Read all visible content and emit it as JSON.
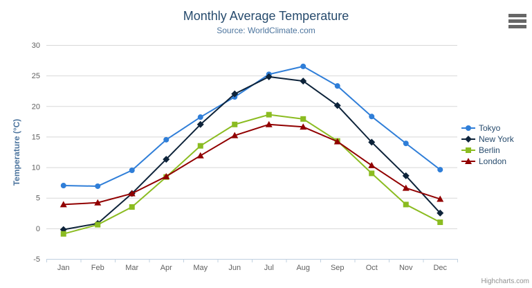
{
  "chart": {
    "title": "Monthly Average Temperature",
    "subtitle": "Source: WorldClimate.com",
    "credits_label": "Highcharts.com",
    "context_menu_icon": "hamburger-icon",
    "colors": {
      "title_text": "#274b6d",
      "subtitle_text": "#4d759e",
      "axis_title_text": "#4d759e",
      "axis_labels_text": "#606060",
      "x_axis_line": "#c0d0e0",
      "gridline": "#d8d8d8",
      "legend_text": "#274b6d",
      "credits_text": "#909090",
      "menu_icon": "#666666"
    }
  },
  "chart_data": {
    "type": "line",
    "title": "Monthly Average Temperature",
    "subtitle": "Source: WorldClimate.com",
    "xlabel": "",
    "ylabel": "Temperature (°C)",
    "categories": [
      "Jan",
      "Feb",
      "Mar",
      "Apr",
      "May",
      "Jun",
      "Jul",
      "Aug",
      "Sep",
      "Oct",
      "Nov",
      "Dec"
    ],
    "series": [
      {
        "name": "Tokyo",
        "color": "#2f7ed8",
        "marker": "circle",
        "values": [
          7.0,
          6.9,
          9.5,
          14.5,
          18.2,
          21.5,
          25.2,
          26.5,
          23.3,
          18.3,
          13.9,
          9.6
        ]
      },
      {
        "name": "New York",
        "color": "#0d233a",
        "marker": "diamond",
        "values": [
          -0.2,
          0.8,
          5.7,
          11.3,
          17.0,
          22.0,
          24.8,
          24.1,
          20.1,
          14.1,
          8.6,
          2.5
        ]
      },
      {
        "name": "Berlin",
        "color": "#8bbc21",
        "marker": "square",
        "values": [
          -0.9,
          0.6,
          3.5,
          8.4,
          13.5,
          17.0,
          18.6,
          17.9,
          14.3,
          9.0,
          3.9,
          1.0
        ]
      },
      {
        "name": "London",
        "color": "#910000",
        "marker": "triangle",
        "values": [
          3.9,
          4.2,
          5.7,
          8.5,
          11.9,
          15.2,
          17.0,
          16.6,
          14.2,
          10.3,
          6.6,
          4.8
        ]
      }
    ],
    "ylim": [
      -5,
      30
    ],
    "ytick_interval": 5,
    "yticks": [
      -5,
      0,
      5,
      10,
      15,
      20,
      25,
      30
    ],
    "grid": true,
    "legend_position": "right"
  }
}
